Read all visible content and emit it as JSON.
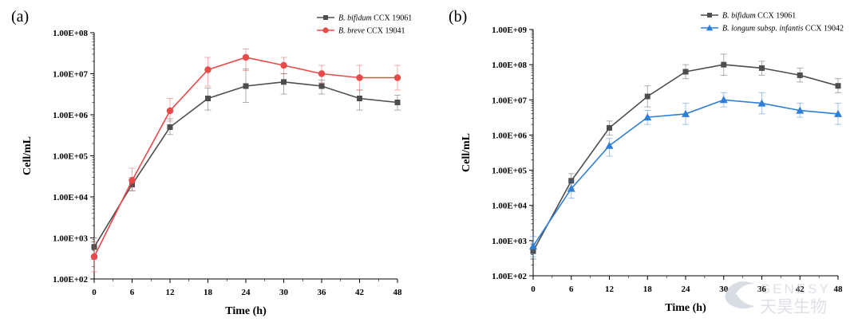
{
  "chart_data": [
    {
      "type": "line",
      "panel_label": "(a)",
      "xlabel": "Time (h)",
      "ylabel": "Cell/mL",
      "yscale": "log",
      "x": [
        0,
        6,
        12,
        18,
        24,
        30,
        36,
        42,
        48
      ],
      "x_ticks": [
        "0",
        "6",
        "12",
        "18",
        "24",
        "30",
        "36",
        "42",
        "48"
      ],
      "xlim": [
        0,
        48
      ],
      "ylim": [
        100,
        100000000
      ],
      "y_ticks": [
        "1.00E+02",
        "1.00E+03",
        "1.00E+04",
        "1.00E+05",
        "1.00E+06",
        "1.00E+07",
        "1.00E+08"
      ],
      "legend_position": "top-right",
      "series": [
        {
          "name": "B. bifidum CCX 19061",
          "name_italic": "B. bifidum",
          "name_suffix": " CCX 19061",
          "color": "#4d4d4d",
          "marker": "square",
          "values": [
            600,
            20000,
            500000,
            2500000,
            5000000,
            6300000,
            5000000,
            2500000,
            2000000
          ],
          "err_low": [
            300,
            14000,
            330000,
            1300000,
            2000000,
            3200000,
            3200000,
            1300000,
            1300000
          ],
          "err_high": [
            1000,
            30000,
            800000,
            4500000,
            13000000,
            10000000,
            7000000,
            4000000,
            3000000
          ]
        },
        {
          "name": "B. breve CCX 19041",
          "name_italic": "B. breve",
          "name_suffix": " CCX 19041",
          "color": "#e84a4a",
          "marker": "circle",
          "values": [
            350,
            25000,
            1250000,
            12500000,
            25000000,
            16000000,
            10000000,
            8000000,
            8000000
          ],
          "err_low": [
            150,
            14000,
            700000,
            5000000,
            12000000,
            10000000,
            6000000,
            4000000,
            4000000
          ],
          "err_high": [
            800,
            50000,
            2500000,
            25000000,
            40000000,
            25000000,
            16000000,
            16000000,
            16000000
          ]
        }
      ]
    },
    {
      "type": "line",
      "panel_label": "(b)",
      "xlabel": "Time (h)",
      "ylabel": "Cell/mL",
      "yscale": "log",
      "x": [
        0,
        6,
        12,
        18,
        24,
        30,
        36,
        42,
        48
      ],
      "x_ticks": [
        "0",
        "6",
        "12",
        "18",
        "24",
        "30",
        "36",
        "42",
        "48"
      ],
      "xlim": [
        0,
        48
      ],
      "ylim": [
        100,
        1000000000
      ],
      "y_ticks": [
        "1.00E+02",
        "1.00E+03",
        "1.00E+04",
        "1.00E+05",
        "1.00E+06",
        "1.00E+07",
        "1.00E+08",
        "1.00E+09"
      ],
      "legend_position": "top-right",
      "series": [
        {
          "name": "B. bifidum CCX 19061",
          "name_italic": "B. bifidum",
          "name_suffix": " CCX 19061",
          "color": "#4d4d4d",
          "marker": "square",
          "values": [
            500,
            50000,
            1600000,
            12500000,
            63000000,
            100000000,
            80000000,
            50000000,
            25000000
          ],
          "err_low": [
            300,
            30000,
            1000000,
            6300000,
            40000000,
            50000000,
            50000000,
            32000000,
            16000000
          ],
          "err_high": [
            800,
            80000,
            2500000,
            25000000,
            100000000,
            200000000,
            125000000,
            80000000,
            40000000
          ]
        },
        {
          "name": "B. longum subsp. infantis CCX 19042",
          "name_italic": "B. longum subsp. infantis",
          "name_suffix": " CCX 19042",
          "color": "#2f7fd6",
          "marker": "triangle",
          "values": [
            700,
            30000,
            500000,
            3200000,
            4000000,
            10000000,
            8000000,
            5000000,
            4000000
          ],
          "err_low": [
            350,
            16000,
            250000,
            2000000,
            2000000,
            6300000,
            4000000,
            3200000,
            2000000
          ],
          "err_high": [
            1300,
            50000,
            800000,
            5000000,
            8000000,
            16000000,
            16000000,
            8000000,
            8000000
          ]
        }
      ]
    }
  ],
  "watermark": {
    "text_latin": "GENESY",
    "text_cjk": "天昊生物"
  }
}
